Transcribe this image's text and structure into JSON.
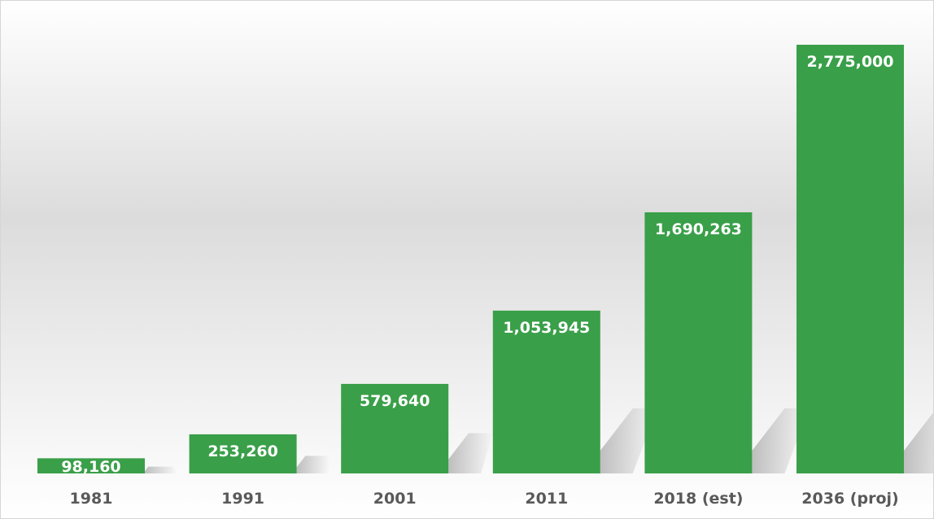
{
  "colors": {
    "bar": "#3a9f49",
    "label_on_bar": "#ffffff",
    "tick_label": "#595959",
    "background_top": "#ffffff",
    "background_mid": "#dcdcdc",
    "shadow": "#b8b8b8"
  },
  "chart_data": {
    "type": "bar",
    "title": "",
    "xlabel": "",
    "ylabel": "",
    "categories": [
      "1981",
      "1991",
      "2001",
      "2011",
      "2018 (est)",
      "2036 (proj)"
    ],
    "values": [
      98160,
      253260,
      579640,
      1053945,
      1690263,
      2775000
    ],
    "value_labels": [
      "98,160",
      "253,260",
      "579,640",
      "1,053,945",
      "1,690,263",
      "2,775,000"
    ],
    "ylim": [
      0,
      2775000
    ],
    "grid": false,
    "legend": "none",
    "data_labels": "inside-top"
  }
}
